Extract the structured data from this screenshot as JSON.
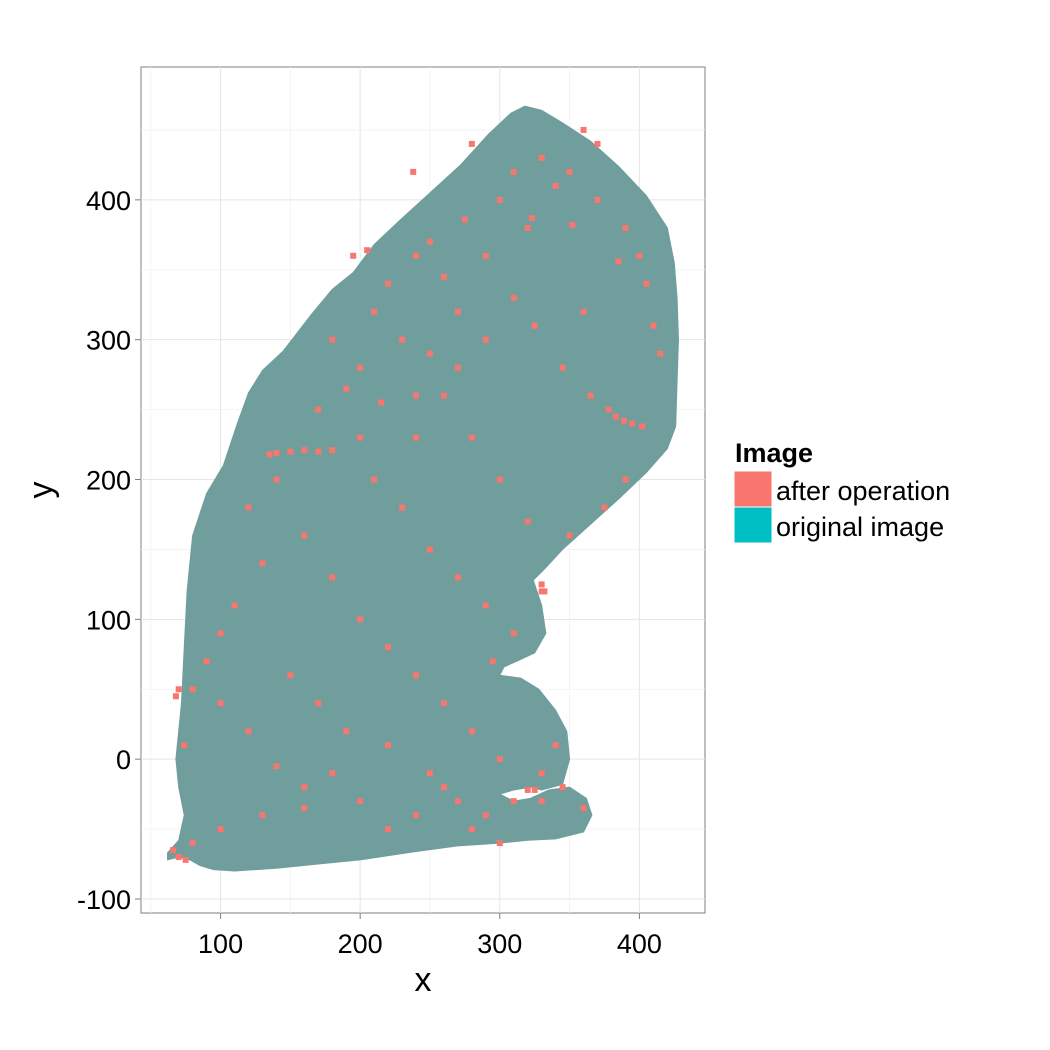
{
  "chart_data": {
    "type": "scatter",
    "title": "",
    "xlabel": "x",
    "ylabel": "y",
    "xlim": [
      43,
      447
    ],
    "ylim": [
      -110,
      495
    ],
    "x_ticks": [
      100,
      200,
      300,
      400
    ],
    "y_ticks": [
      -100,
      0,
      100,
      200,
      300,
      400
    ],
    "x_tick_labels": [
      "100",
      "200",
      "300",
      "400"
    ],
    "y_tick_labels": [
      "-100",
      "0",
      "100",
      "200",
      "300",
      "400"
    ],
    "grid": true,
    "legend": {
      "title": "Image",
      "placement": "right",
      "entries": [
        {
          "label": "after operation",
          "color": "#F8766D"
        },
        {
          "label": "original image",
          "color": "#00BFC4"
        }
      ]
    },
    "series": [
      {
        "name": "original image",
        "color": "#00BFC4",
        "outline": [
          [
            62,
            -67
          ],
          [
            70,
            -58
          ],
          [
            74,
            -40
          ],
          [
            70,
            -20
          ],
          [
            68,
            0
          ],
          [
            72,
            40
          ],
          [
            74,
            80
          ],
          [
            76,
            120
          ],
          [
            80,
            160
          ],
          [
            90,
            190
          ],
          [
            102,
            210
          ],
          [
            112,
            240
          ],
          [
            120,
            262
          ],
          [
            130,
            278
          ],
          [
            145,
            292
          ],
          [
            165,
            318
          ],
          [
            180,
            336
          ],
          [
            195,
            348
          ],
          [
            210,
            368
          ],
          [
            228,
            385
          ],
          [
            250,
            405
          ],
          [
            272,
            425
          ],
          [
            292,
            447
          ],
          [
            308,
            462
          ],
          [
            318,
            467
          ],
          [
            330,
            464
          ],
          [
            345,
            455
          ],
          [
            365,
            442
          ],
          [
            385,
            424
          ],
          [
            405,
            403
          ],
          [
            420,
            380
          ],
          [
            425,
            355
          ],
          [
            427,
            330
          ],
          [
            428,
            300
          ],
          [
            427,
            270
          ],
          [
            426,
            238
          ],
          [
            420,
            222
          ],
          [
            405,
            205
          ],
          [
            385,
            186
          ],
          [
            365,
            168
          ],
          [
            345,
            150
          ],
          [
            332,
            136
          ],
          [
            324,
            128
          ],
          [
            330,
            110
          ],
          [
            333,
            90
          ],
          [
            325,
            76
          ],
          [
            312,
            70
          ],
          [
            303,
            66
          ],
          [
            300,
            60
          ],
          [
            315,
            58
          ],
          [
            328,
            50
          ],
          [
            340,
            35
          ],
          [
            348,
            20
          ],
          [
            350,
            0
          ],
          [
            345,
            -18
          ],
          [
            330,
            -22
          ],
          [
            322,
            -20
          ],
          [
            310,
            -22
          ],
          [
            300,
            -25
          ],
          [
            310,
            -30
          ],
          [
            322,
            -28
          ],
          [
            335,
            -22
          ],
          [
            350,
            -20
          ],
          [
            362,
            -28
          ],
          [
            366,
            -40
          ],
          [
            360,
            -52
          ],
          [
            340,
            -57
          ],
          [
            320,
            -58
          ],
          [
            300,
            -60
          ],
          [
            270,
            -62
          ],
          [
            240,
            -66
          ],
          [
            200,
            -72
          ],
          [
            170,
            -75
          ],
          [
            140,
            -78
          ],
          [
            110,
            -80
          ],
          [
            95,
            -79
          ],
          [
            85,
            -76
          ],
          [
            78,
            -72
          ],
          [
            70,
            -70
          ],
          [
            62,
            -72
          ]
        ]
      },
      {
        "name": "after operation",
        "color": "#F8766D",
        "points": [
          [
            150,
            220
          ],
          [
            140,
            219
          ],
          [
            160,
            221
          ],
          [
            170,
            220
          ],
          [
            180,
            221
          ],
          [
            135,
            218
          ],
          [
            352,
            382
          ],
          [
            378,
            250
          ],
          [
            383,
            245
          ],
          [
            389,
            242
          ],
          [
            395,
            240
          ],
          [
            402,
            238
          ],
          [
            195,
            360
          ],
          [
            205,
            364
          ],
          [
            250,
            370
          ],
          [
            275,
            386
          ],
          [
            323,
            387
          ],
          [
            238,
            420
          ],
          [
            300,
            400
          ],
          [
            280,
            440
          ],
          [
            360,
            450
          ],
          [
            370,
            440
          ],
          [
            340,
            410
          ],
          [
            385,
            356
          ],
          [
            405,
            340
          ],
          [
            410,
            310
          ],
          [
            415,
            290
          ],
          [
            320,
            380
          ],
          [
            325,
            310
          ],
          [
            360,
            320
          ],
          [
            290,
            360
          ],
          [
            260,
            345
          ],
          [
            230,
            300
          ],
          [
            240,
            260
          ],
          [
            180,
            300
          ],
          [
            170,
            250
          ],
          [
            200,
            230
          ],
          [
            210,
            200
          ],
          [
            230,
            180
          ],
          [
            250,
            150
          ],
          [
            270,
            130
          ],
          [
            290,
            110
          ],
          [
            310,
            90
          ],
          [
            295,
            70
          ],
          [
            330,
            120
          ],
          [
            120,
            180
          ],
          [
            130,
            140
          ],
          [
            110,
            110
          ],
          [
            100,
            90
          ],
          [
            90,
            70
          ],
          [
            80,
            50
          ],
          [
            150,
            60
          ],
          [
            170,
            40
          ],
          [
            190,
            20
          ],
          [
            220,
            10
          ],
          [
            250,
            -10
          ],
          [
            270,
            -30
          ],
          [
            290,
            -40
          ],
          [
            310,
            -30
          ],
          [
            330,
            -10
          ],
          [
            340,
            10
          ],
          [
            80,
            -60
          ],
          [
            100,
            -50
          ],
          [
            130,
            -40
          ],
          [
            160,
            -20
          ],
          [
            180,
            -10
          ],
          [
            200,
            -30
          ],
          [
            220,
            -50
          ],
          [
            240,
            -40
          ],
          [
            260,
            -20
          ],
          [
            280,
            -50
          ],
          [
            300,
            -60
          ],
          [
            330,
            -30
          ],
          [
            360,
            -35
          ],
          [
            70,
            50
          ],
          [
            68,
            45
          ],
          [
            74,
            10
          ],
          [
            140,
            200
          ],
          [
            160,
            160
          ],
          [
            180,
            130
          ],
          [
            200,
            100
          ],
          [
            220,
            80
          ],
          [
            240,
            60
          ],
          [
            260,
            40
          ],
          [
            280,
            20
          ],
          [
            300,
            0
          ],
          [
            120,
            20
          ],
          [
            140,
            -5
          ],
          [
            160,
            -35
          ],
          [
            100,
            40
          ],
          [
            270,
            320
          ],
          [
            345,
            280
          ],
          [
            365,
            260
          ],
          [
            390,
            200
          ],
          [
            375,
            180
          ],
          [
            350,
            160
          ],
          [
            320,
            170
          ],
          [
            300,
            200
          ],
          [
            280,
            230
          ],
          [
            260,
            260
          ],
          [
            240,
            230
          ],
          [
            215,
            255
          ],
          [
            190,
            265
          ],
          [
            200,
            280
          ],
          [
            210,
            320
          ],
          [
            220,
            340
          ],
          [
            240,
            360
          ],
          [
            310,
            420
          ],
          [
            330,
            430
          ],
          [
            350,
            420
          ],
          [
            370,
            400
          ],
          [
            390,
            380
          ],
          [
            400,
            360
          ],
          [
            310,
            330
          ],
          [
            290,
            300
          ],
          [
            270,
            280
          ],
          [
            250,
            290
          ],
          [
            330,
            125
          ],
          [
            332,
            120
          ],
          [
            66,
            -65
          ],
          [
            70,
            -70
          ],
          [
            75,
            -72
          ],
          [
            320,
            -22
          ],
          [
            325,
            -22
          ],
          [
            345,
            -20
          ]
        ]
      }
    ]
  }
}
